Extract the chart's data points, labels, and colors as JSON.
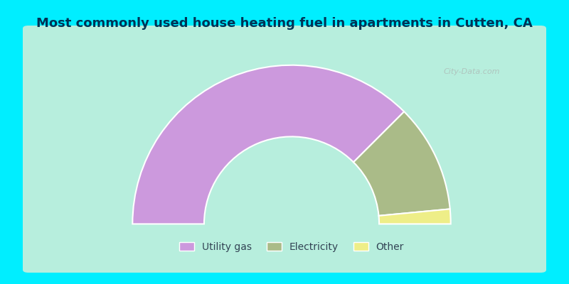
{
  "title": "Most commonly used house heating fuel in apartments in Cutten, CA",
  "slices": [
    {
      "label": "Utility gas",
      "value": 75,
      "color": "#cc99dd"
    },
    {
      "label": "Electricity",
      "value": 22,
      "color": "#aabb88"
    },
    {
      "label": "Other",
      "value": 3,
      "color": "#eeee88"
    }
  ],
  "background_color": "#00eeff",
  "chart_bg_color": "#d8eed8",
  "title_color": "#003355",
  "legend_text_color": "#334455",
  "watermark": "City-Data.com"
}
